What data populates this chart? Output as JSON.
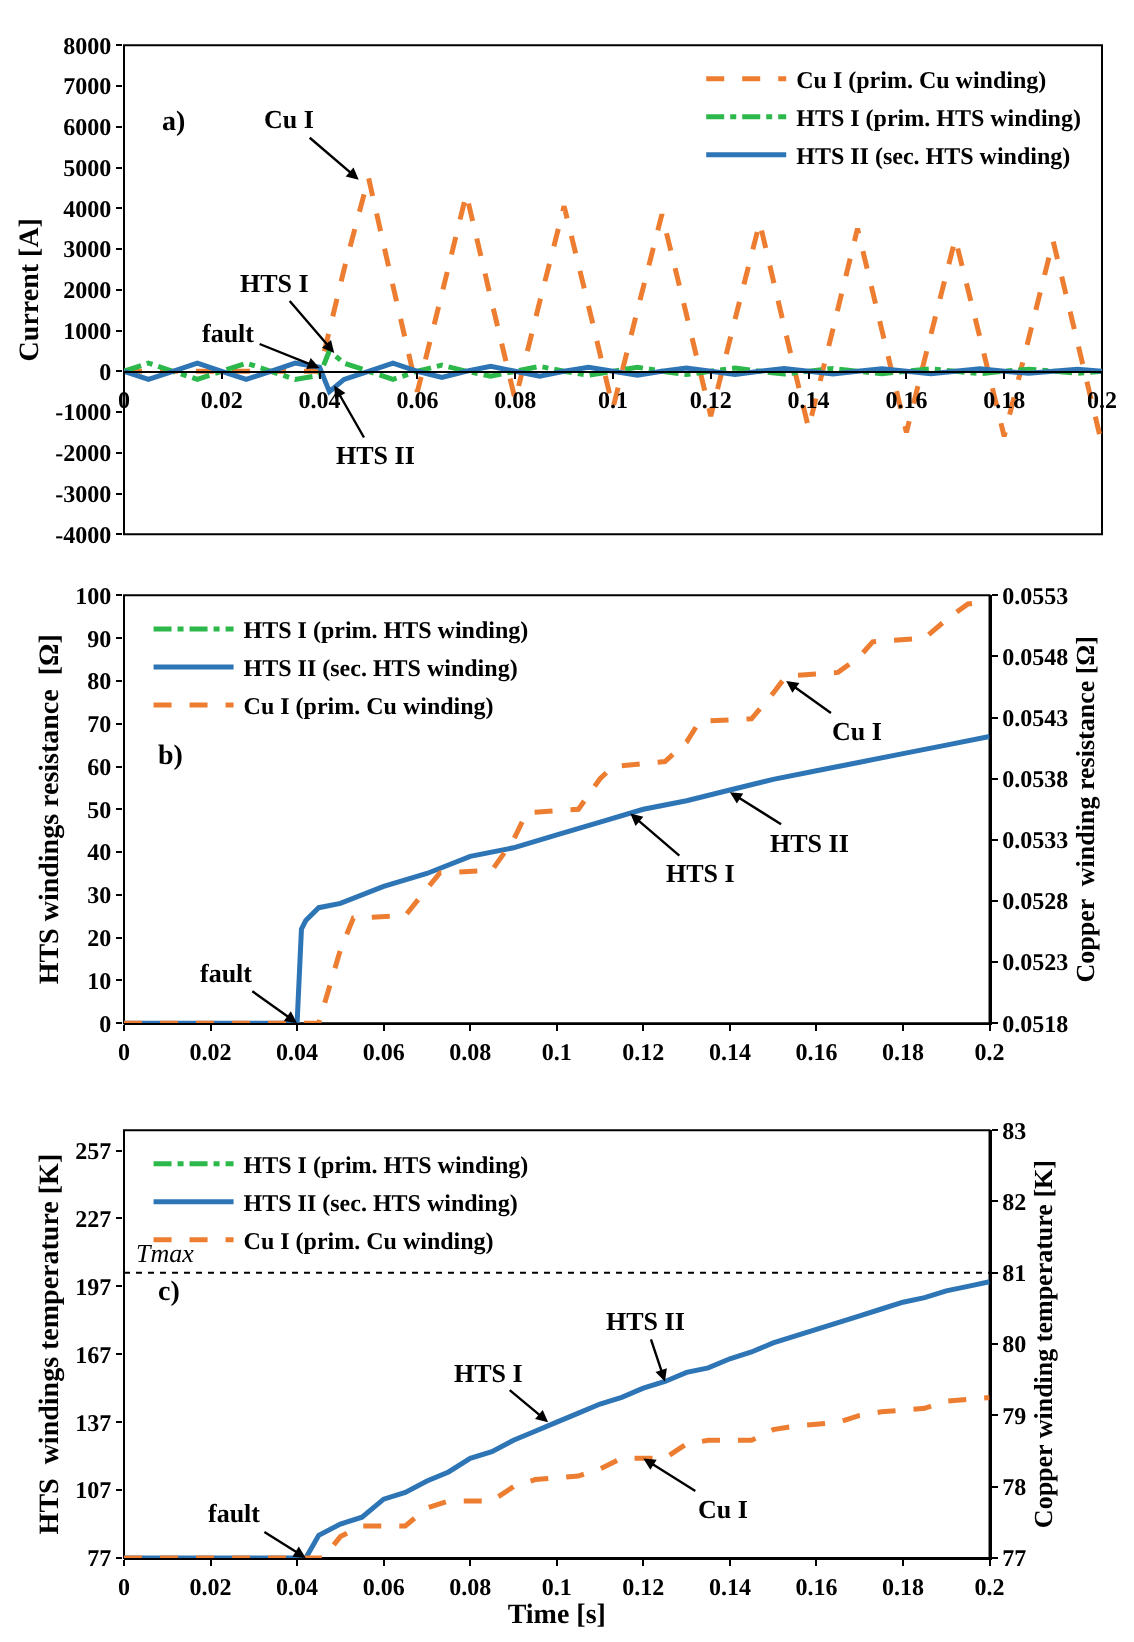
{
  "chart_data": [
    {
      "type": "line",
      "ylabel": "Current [A]",
      "xlim": [
        0,
        0.2
      ],
      "xticks": [
        0,
        0.02,
        0.04,
        0.06,
        0.08,
        0.1,
        0.12,
        0.14,
        0.16,
        0.18,
        0.2
      ],
      "ylim": [
        -4000,
        8000
      ],
      "yticks": [
        -4000,
        -3000,
        -2000,
        -1000,
        0,
        1000,
        2000,
        3000,
        4000,
        5000,
        6000,
        7000,
        8000
      ],
      "grid": false,
      "legend": "top right",
      "marker": "none",
      "annotations": [
        "a)",
        {
          "text": "Cu I",
          "x": 0.048,
          "y": 4700
        },
        {
          "text": "HTS I",
          "x": 0.043,
          "y": 450
        },
        {
          "text": "fault",
          "x": 0.04,
          "y": 80
        },
        {
          "text": "HTS II",
          "x": 0.043,
          "y": -350
        }
      ],
      "series": [
        {
          "name": "Cu I (prim. Cu winding)",
          "color": "#ed7d31",
          "line_style": "dashed",
          "x": [
            0,
            0.01,
            0.02,
            0.03,
            0.04,
            0.045,
            0.05,
            0.055,
            0.06,
            0.065,
            0.07,
            0.075,
            0.08,
            0.085,
            0.09,
            0.095,
            0.1,
            0.105,
            0.11,
            0.115,
            0.12,
            0.125,
            0.13,
            0.135,
            0.14,
            0.145,
            0.15,
            0.155,
            0.16,
            0.165,
            0.17,
            0.175,
            0.18,
            0.185,
            0.19,
            0.195,
            0.2
          ],
          "values": [
            0,
            0,
            0,
            0,
            0,
            2500,
            4750,
            2100,
            -500,
            1900,
            4350,
            1800,
            -700,
            1700,
            4050,
            1600,
            -900,
            1500,
            3850,
            1400,
            -1100,
            1300,
            3650,
            1100,
            -1400,
            1050,
            3500,
            1000,
            -1500,
            900,
            3250,
            850,
            -1600,
            800,
            3200,
            700,
            -1800
          ]
        },
        {
          "name": "HTS I (prim. HTS winding)",
          "color": "#2db84b",
          "line_style": "dashdot",
          "x": [
            0,
            0.005,
            0.01,
            0.015,
            0.02,
            0.025,
            0.03,
            0.035,
            0.04,
            0.042,
            0.045,
            0.05,
            0.055,
            0.06,
            0.065,
            0.07,
            0.075,
            0.08,
            0.085,
            0.09,
            0.095,
            0.1,
            0.105,
            0.11,
            0.115,
            0.12,
            0.125,
            0.13,
            0.135,
            0.14,
            0.145,
            0.15,
            0.155,
            0.16,
            0.165,
            0.17,
            0.175,
            0.18,
            0.185,
            0.19,
            0.195,
            0.2
          ],
          "values": [
            0,
            200,
            0,
            -200,
            0,
            200,
            0,
            -200,
            -100,
            500,
            200,
            0,
            -200,
            0,
            150,
            0,
            -120,
            0,
            120,
            0,
            -100,
            0,
            100,
            0,
            -80,
            0,
            80,
            0,
            -70,
            0,
            70,
            0,
            -60,
            0,
            60,
            0,
            -60,
            0,
            50,
            0,
            -50,
            0
          ]
        },
        {
          "name": "HTS II (sec. HTS winding)",
          "color": "#2e75b6",
          "line_style": "solid",
          "x": [
            0,
            0.005,
            0.01,
            0.015,
            0.02,
            0.025,
            0.03,
            0.035,
            0.04,
            0.042,
            0.045,
            0.05,
            0.055,
            0.06,
            0.065,
            0.07,
            0.075,
            0.08,
            0.085,
            0.09,
            0.095,
            0.1,
            0.105,
            0.11,
            0.115,
            0.12,
            0.125,
            0.13,
            0.135,
            0.14,
            0.145,
            0.15,
            0.155,
            0.16,
            0.165,
            0.17,
            0.175,
            0.18,
            0.185,
            0.19,
            0.195,
            0.2
          ],
          "values": [
            0,
            -200,
            0,
            200,
            0,
            -200,
            0,
            200,
            100,
            -500,
            -200,
            0,
            200,
            0,
            -150,
            0,
            120,
            0,
            -120,
            0,
            100,
            0,
            -100,
            0,
            80,
            0,
            -80,
            0,
            70,
            0,
            -70,
            0,
            60,
            0,
            -60,
            0,
            60,
            0,
            -50,
            0,
            50,
            0
          ]
        }
      ]
    },
    {
      "type": "line",
      "ylabel": "HTS windings resistance  [Ω]",
      "y2label": "Copper  winding resistance [Ω]",
      "xlim": [
        0,
        0.2
      ],
      "xticks": [
        0,
        0.02,
        0.04,
        0.06,
        0.08,
        0.1,
        0.12,
        0.14,
        0.16,
        0.18,
        0.2
      ],
      "ylim": [
        0,
        100
      ],
      "yticks": [
        0,
        10,
        20,
        30,
        40,
        50,
        60,
        70,
        80,
        90,
        100
      ],
      "y2lim": [
        0.0518,
        0.0553
      ],
      "y2ticks": [
        0.0518,
        0.0523,
        0.0528,
        0.0533,
        0.0538,
        0.0543,
        0.0548,
        0.0553
      ],
      "grid": false,
      "legend": "top left",
      "marker": "none",
      "annotations": [
        "b)",
        {
          "text": "fault",
          "x": 0.04,
          "y": 0
        },
        {
          "text": "Cu I",
          "x": 0.153,
          "y": 80
        },
        {
          "text": "HTS II",
          "x": 0.14,
          "y": 54
        },
        {
          "text": "HTS I",
          "x": 0.117,
          "y": 49
        }
      ],
      "series": [
        {
          "name": "HTS I (prim. HTS winding)",
          "color": "#2db84b",
          "line_style": "dashdot"
        },
        {
          "name": "HTS II (sec. HTS winding)",
          "color": "#2e75b6",
          "line_style": "solid",
          "x": [
            0,
            0.04,
            0.041,
            0.042,
            0.045,
            0.05,
            0.06,
            0.07,
            0.08,
            0.09,
            0.1,
            0.11,
            0.12,
            0.13,
            0.14,
            0.15,
            0.16,
            0.17,
            0.18,
            0.19,
            0.2
          ],
          "values": [
            0,
            0,
            22,
            24,
            27,
            28,
            32,
            35,
            39,
            41,
            44,
            47,
            50,
            52,
            54.5,
            57,
            59,
            61,
            63,
            65,
            67
          ]
        },
        {
          "name": "Cu I (prim. Cu winding)",
          "color": "#ed7d31",
          "line_style": "dashed",
          "axis": "y2",
          "x": [
            0,
            0.045,
            0.05,
            0.053,
            0.065,
            0.07,
            0.073,
            0.085,
            0.09,
            0.093,
            0.105,
            0.11,
            0.113,
            0.125,
            0.13,
            0.133,
            0.145,
            0.15,
            0.153,
            0.165,
            0.17,
            0.173,
            0.185,
            0.19,
            0.195,
            0.2
          ],
          "values": [
            0.0518,
            0.0518,
            0.0524,
            0.05266,
            0.05268,
            0.0529,
            0.05303,
            0.05305,
            0.0533,
            0.05352,
            0.05355,
            0.0538,
            0.0539,
            0.05394,
            0.0541,
            0.05427,
            0.05429,
            0.0545,
            0.05464,
            0.05467,
            0.0548,
            0.05492,
            0.05495,
            0.0551,
            0.05523,
            0.05525
          ]
        }
      ]
    },
    {
      "type": "line",
      "xlabel": "Time [s]",
      "ylabel": "HTS  windings temperature [K]",
      "y2label": "Copper winding temperature [K]",
      "xlim": [
        0,
        0.2
      ],
      "xticks": [
        0,
        0.02,
        0.04,
        0.06,
        0.08,
        0.1,
        0.12,
        0.14,
        0.16,
        0.18,
        0.2
      ],
      "ylim": [
        77,
        266
      ],
      "yticks": [
        77,
        107,
        137,
        167,
        197,
        227,
        257
      ],
      "y2lim": [
        77,
        83
      ],
      "y2ticks": [
        77,
        78,
        79,
        80,
        81,
        82,
        83
      ],
      "grid": false,
      "legend": "top left",
      "marker": "none",
      "ref_lines": [
        {
          "axis": "y",
          "value": 203,
          "label": "Tmax",
          "color": "#000000",
          "line_style": "dotted"
        }
      ],
      "annotations": [
        "c)",
        {
          "text": "fault",
          "x": 0.042,
          "y": 77
        },
        {
          "text": "HTS I",
          "x": 0.098,
          "y": 137
        },
        {
          "text": "HTS II",
          "x": 0.125,
          "y": 155
        },
        {
          "text": "Cu I",
          "x": 0.12,
          "y": 121
        }
      ],
      "series": [
        {
          "name": "HTS I (prim. HTS winding)",
          "color": "#2db84b",
          "line_style": "dashdot"
        },
        {
          "name": "HTS II (sec. HTS winding)",
          "color": "#2e75b6",
          "line_style": "solid",
          "x": [
            0,
            0.042,
            0.045,
            0.05,
            0.055,
            0.06,
            0.065,
            0.07,
            0.075,
            0.08,
            0.085,
            0.09,
            0.095,
            0.1,
            0.105,
            0.11,
            0.115,
            0.12,
            0.125,
            0.13,
            0.135,
            0.14,
            0.145,
            0.15,
            0.155,
            0.16,
            0.165,
            0.17,
            0.175,
            0.18,
            0.185,
            0.19,
            0.195,
            0.2
          ],
          "values": [
            77,
            77,
            87,
            92,
            95,
            103,
            106,
            111,
            115,
            121,
            124,
            129,
            133,
            137,
            141,
            145,
            148,
            152,
            155,
            159,
            161,
            165,
            168,
            172,
            175,
            178,
            181,
            184,
            187,
            190,
            192,
            195,
            197,
            199
          ]
        },
        {
          "name": "Cu I (prim. Cu winding)",
          "color": "#ed7d31",
          "line_style": "dashed",
          "axis": "y2",
          "x": [
            0,
            0.046,
            0.05,
            0.055,
            0.065,
            0.07,
            0.075,
            0.085,
            0.09,
            0.095,
            0.105,
            0.11,
            0.115,
            0.125,
            0.13,
            0.135,
            0.145,
            0.15,
            0.155,
            0.165,
            0.17,
            0.175,
            0.185,
            0.19,
            0.2
          ],
          "values": [
            77,
            77,
            77.3,
            77.45,
            77.45,
            77.7,
            77.8,
            77.8,
            78.0,
            78.1,
            78.15,
            78.25,
            78.4,
            78.4,
            78.6,
            78.65,
            78.65,
            78.8,
            78.85,
            78.9,
            79.0,
            79.05,
            79.1,
            79.2,
            79.25
          ]
        }
      ]
    }
  ]
}
